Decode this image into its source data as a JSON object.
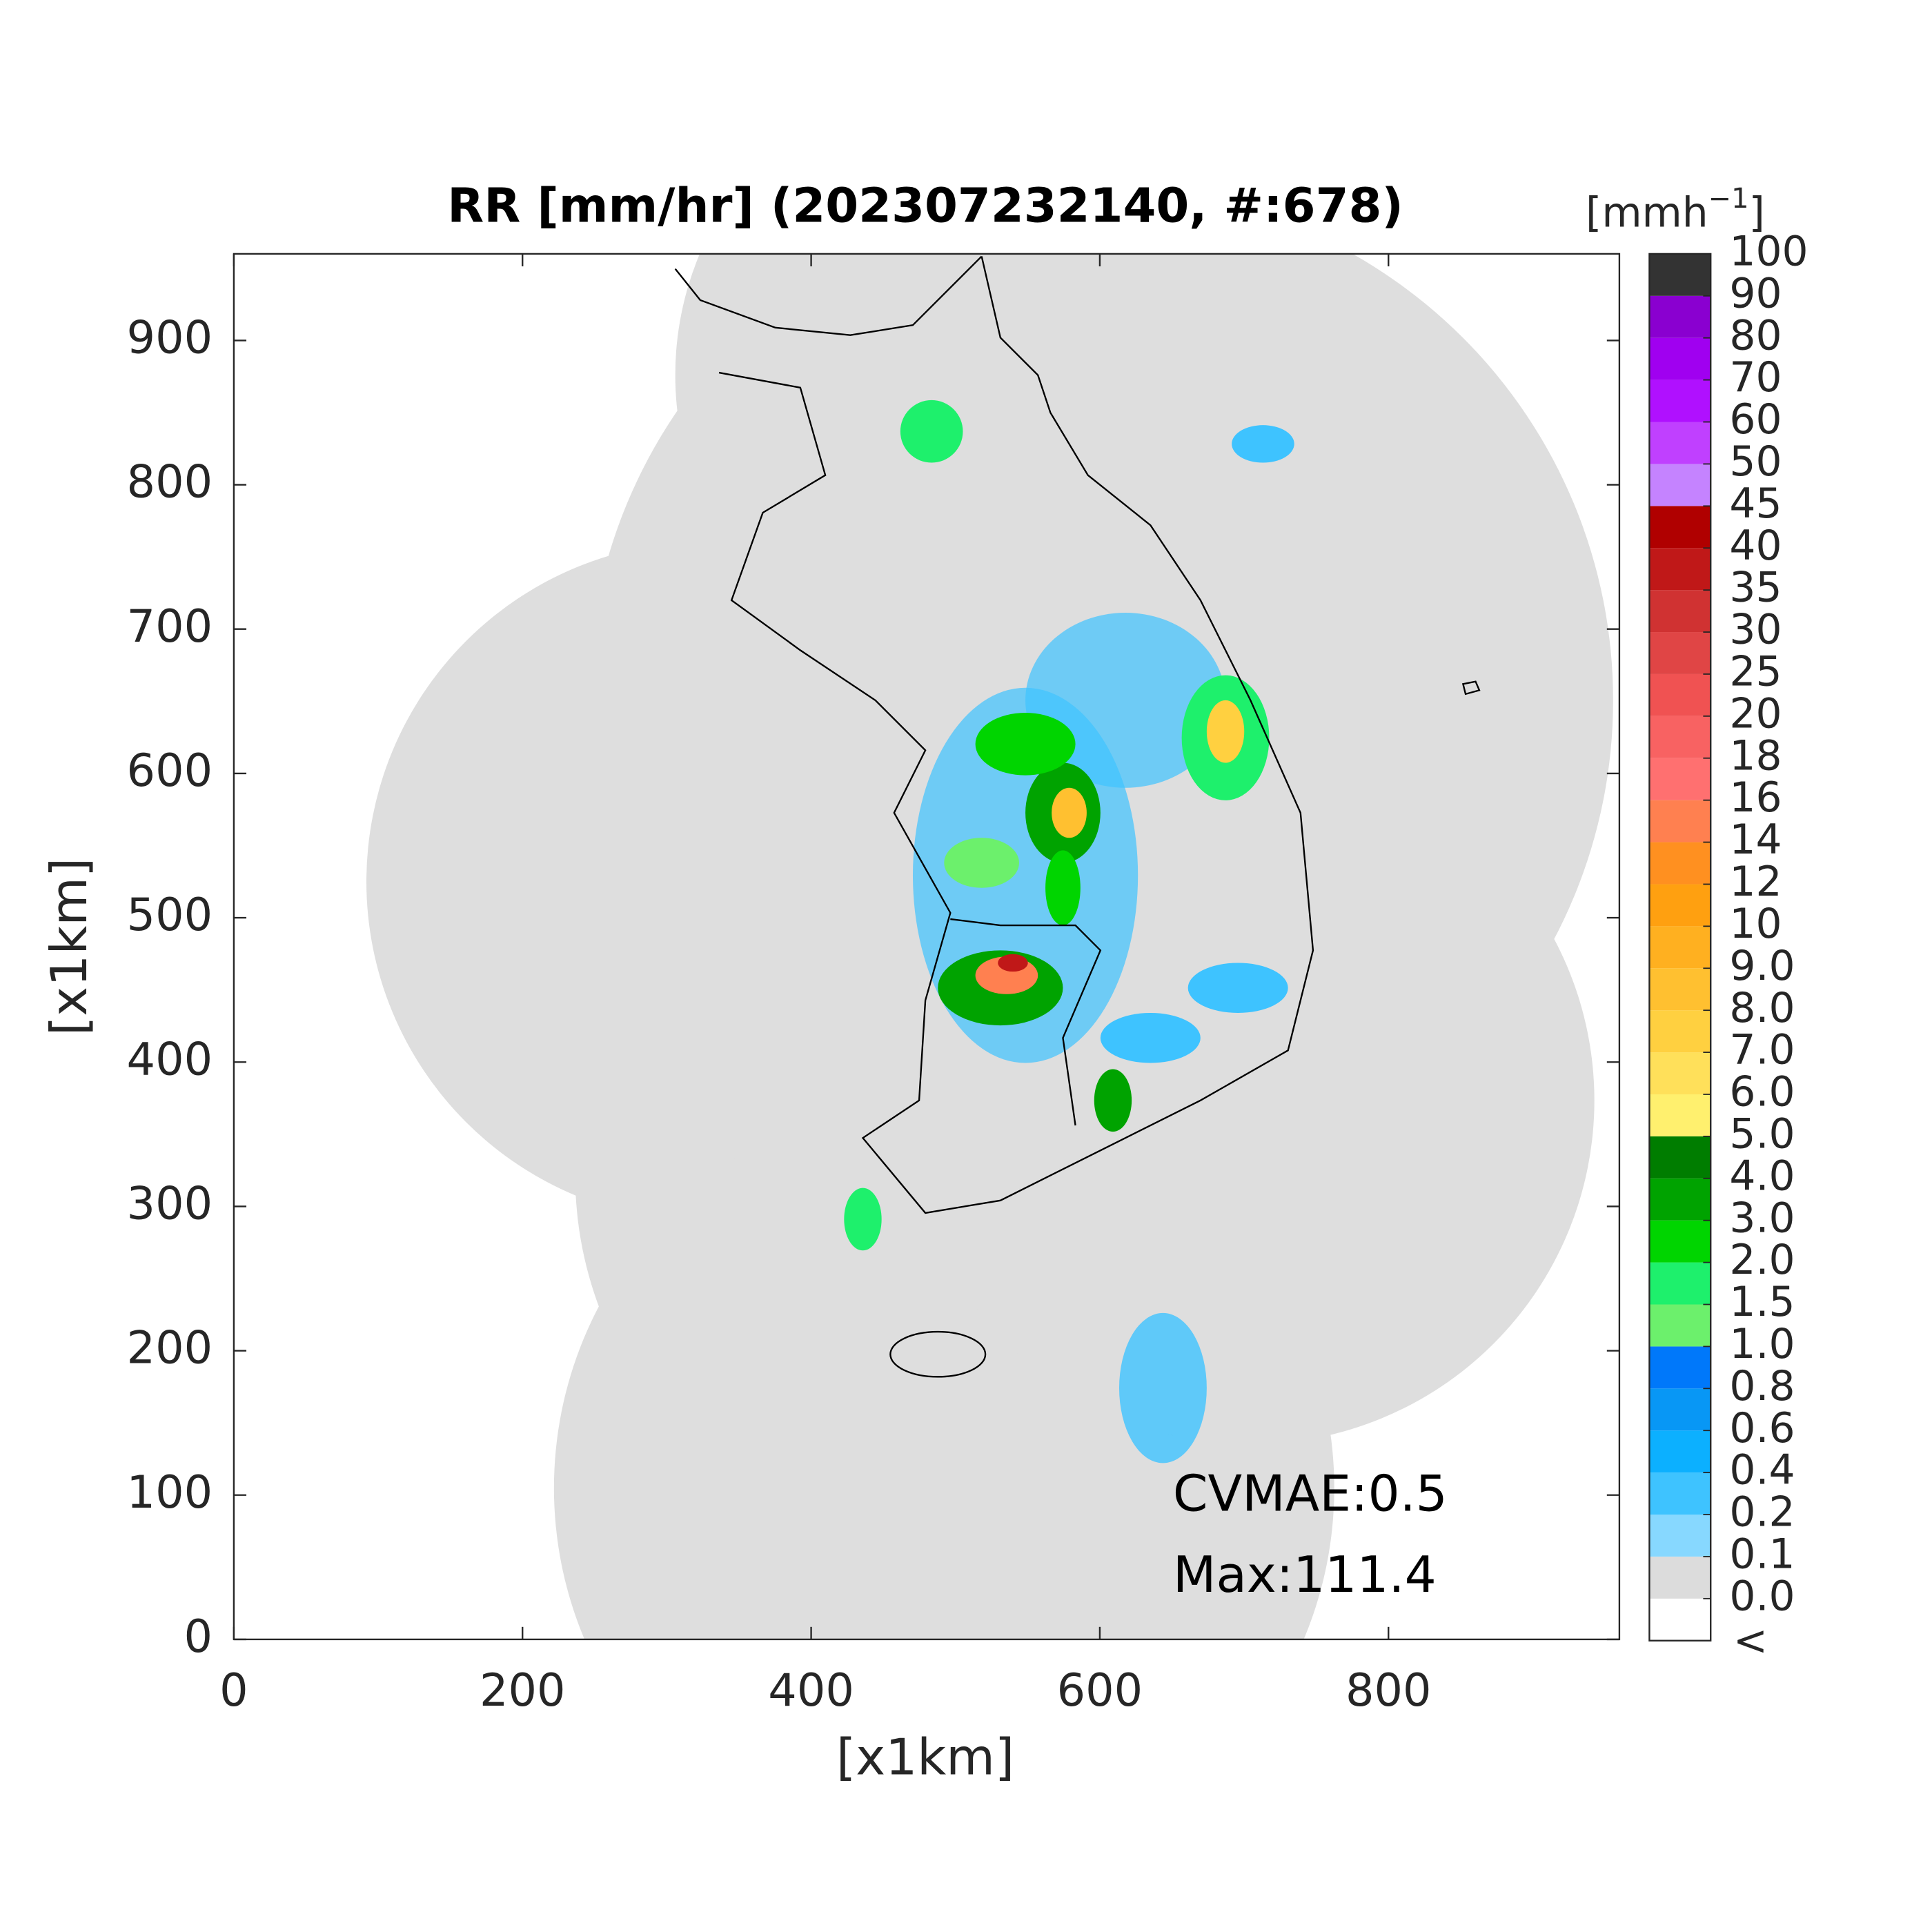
{
  "chart_data": {
    "type": "heatmap",
    "title": "RR [mm/hr] (202307232140, #:678)",
    "x_label": "[x1km]",
    "y_label": "[x1km]",
    "xlim": [
      0,
      960
    ],
    "ylim": [
      0,
      960
    ],
    "xticks": [
      0,
      200,
      400,
      600,
      800
    ],
    "yticks": [
      0,
      100,
      200,
      300,
      400,
      500,
      600,
      700,
      800,
      900
    ],
    "annotations": [
      "CVMAE:0.5",
      "Max:111.4"
    ],
    "colorbar": {
      "label": [
        "[mmh",
        "−1",
        "]"
      ],
      "under_label": "<",
      "under_color": "#ffffff",
      "ticks": [
        {
          "value": 0,
          "label": "0.0"
        },
        0.1,
        0.2,
        0.4,
        0.6,
        0.8,
        {
          "value": 1,
          "label": "1.0"
        },
        1.5,
        {
          "value": 2,
          "label": "2.0"
        },
        {
          "value": 3,
          "label": "3.0"
        },
        {
          "value": 4,
          "label": "4.0"
        },
        {
          "value": 5,
          "label": "5.0"
        },
        {
          "value": 6,
          "label": "6.0"
        },
        {
          "value": 7,
          "label": "7.0"
        },
        {
          "value": 8,
          "label": "8.0"
        },
        {
          "value": 9,
          "label": "9.0"
        },
        10,
        12,
        14,
        16,
        18,
        20,
        25,
        30,
        35,
        40,
        45,
        50,
        60,
        70,
        80,
        90,
        100
      ],
      "colors": [
        "#dcdcdc",
        "#87d8ff",
        "#3ec3ff",
        "#0cb0ff",
        "#0897f5",
        "#0078fa",
        "#6cf06c",
        "#1ef06c",
        "#00d500",
        "#00a300",
        "#007d00",
        "#fff06e",
        "#ffe05a",
        "#ffd040",
        "#ffc030",
        "#ffb020",
        "#ffa010",
        "#ff9020",
        "#ff8050",
        "#ff7070",
        "#f86262",
        "#f05252",
        "#e04545",
        "#d03232",
        "#c01818",
        "#b00000",
        "#c583ff",
        "#c040ff",
        "#b010ff",
        "#a000f0",
        "#8a00d0",
        "#333333"
      ]
    }
  }
}
